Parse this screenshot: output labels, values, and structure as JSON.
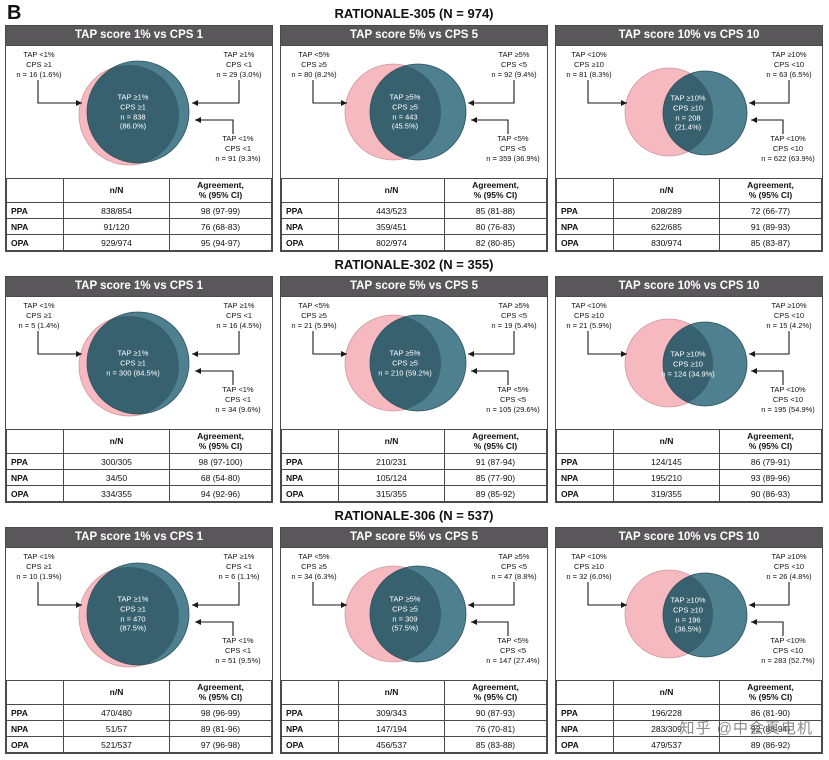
{
  "panel_label": "B",
  "watermark": "知乎 @中会真电机",
  "colors": {
    "header_bg": "#59575a",
    "border": "#4a4a4a",
    "pink": "#f6b9bf",
    "pink_edge": "#cf99a0",
    "teal_light": "#4e8090",
    "teal_dark": "#38616f",
    "teal_edge": "#2e525e",
    "arrow": "#1a1a1a"
  },
  "table_headers": {
    "col1": "n/N",
    "col2": "Agreement,\n% (95% CI)"
  },
  "studies": [
    {
      "title": "RATIONALE-305 (N = 974)",
      "panels": [
        {
          "header": "TAP score 1% vs CPS 1",
          "labels": {
            "top_left": "TAP <1%\nCPS ≥1\nn = 16 (1.6%)",
            "top_right": "TAP ≥1%\nCPS <1\nn = 29 (3.0%)",
            "center": "TAP ≥1%\nCPS ≥1\nn = 838\n(86.0%)",
            "bottom_right": "TAP <1%\nCPS <1\nn = 91 (9.3%)"
          },
          "table": {
            "rows": [
              {
                "label": "PPA",
                "n_N": "838/854",
                "agreement": "98 (97-99)"
              },
              {
                "label": "NPA",
                "n_N": "91/120",
                "agreement": "76 (68-83)"
              },
              {
                "label": "OPA",
                "n_N": "929/974",
                "agreement": "95 (94-97)"
              }
            ]
          }
        },
        {
          "header": "TAP score 5% vs CPS 5",
          "labels": {
            "top_left": "TAP <5%\nCPS ≥5\nn = 80 (8.2%)",
            "top_right": "TAP ≥5%\nCPS <5\nn = 92 (9.4%)",
            "center": "TAP ≥5%\nCPS ≥5\nn = 443\n(45.5%)",
            "bottom_right": "TAP <5%\nCPS <5\nn = 359 (36.9%)"
          },
          "table": {
            "rows": [
              {
                "label": "PPA",
                "n_N": "443/523",
                "agreement": "85 (81-88)"
              },
              {
                "label": "NPA",
                "n_N": "359/451",
                "agreement": "80 (76-83)"
              },
              {
                "label": "OPA",
                "n_N": "802/974",
                "agreement": "82 (80-85)"
              }
            ]
          }
        },
        {
          "header": "TAP score 10% vs CPS 10",
          "labels": {
            "top_left": "TAP <10%\nCPS ≥10\nn = 81 (8.3%)",
            "top_right": "TAP ≥10%\nCPS <10\nn = 63 (6.5%)",
            "center": "TAP ≥10%\nCPS ≥10\nn = 208\n(21.4%)",
            "bottom_right": "TAP <10%\nCPS <10\nn = 622 (63.9%)"
          },
          "table": {
            "rows": [
              {
                "label": "PPA",
                "n_N": "208/289",
                "agreement": "72 (66-77)"
              },
              {
                "label": "NPA",
                "n_N": "622/685",
                "agreement": "91 (89-93)"
              },
              {
                "label": "OPA",
                "n_N": "830/974",
                "agreement": "85 (83-87)"
              }
            ]
          }
        }
      ]
    },
    {
      "title": "RATIONALE-302 (N = 355)",
      "panels": [
        {
          "header": "TAP score 1% vs CPS 1",
          "labels": {
            "top_left": "TAP <1%\nCPS ≥1\nn = 5 (1.4%)",
            "top_right": "TAP ≥1%\nCPS <1\nn = 16 (4.5%)",
            "center": "TAP ≥1%\nCPS ≥1\nn = 300 (84.5%)",
            "bottom_right": "TAP <1%\nCPS <1\nn = 34 (9.6%)"
          },
          "table": {
            "rows": [
              {
                "label": "PPA",
                "n_N": "300/305",
                "agreement": "98 (97-100)"
              },
              {
                "label": "NPA",
                "n_N": "34/50",
                "agreement": "68 (54-80)"
              },
              {
                "label": "OPA",
                "n_N": "334/355",
                "agreement": "94 (92-96)"
              }
            ]
          }
        },
        {
          "header": "TAP score 5% vs CPS 5",
          "labels": {
            "top_left": "TAP <5%\nCPS ≥5\nn = 21 (5.9%)",
            "top_right": "TAP ≥5%\nCPS <5\nn = 19 (5.4%)",
            "center": "TAP ≥5%\nCPS ≥5\nn = 210 (59.2%)",
            "bottom_right": "TAP <5%\nCPS <5\nn = 105 (29.6%)"
          },
          "table": {
            "rows": [
              {
                "label": "PPA",
                "n_N": "210/231",
                "agreement": "91 (87-94)"
              },
              {
                "label": "NPA",
                "n_N": "105/124",
                "agreement": "85 (77-90)"
              },
              {
                "label": "OPA",
                "n_N": "315/355",
                "agreement": "89 (85-92)"
              }
            ]
          }
        },
        {
          "header": "TAP score 10% vs CPS 10",
          "labels": {
            "top_left": "TAP <10%\nCPS ≥10\nn = 21 (5.9%)",
            "top_right": "TAP ≥10%\nCPS <10\nn = 15 (4.2%)",
            "center": "TAP ≥10%\nCPS ≥10\nn = 124 (34.9%)",
            "bottom_right": "TAP <10%\nCPS <10\nn = 195 (54.9%)"
          },
          "table": {
            "rows": [
              {
                "label": "PPA",
                "n_N": "124/145",
                "agreement": "86 (79-91)"
              },
              {
                "label": "NPA",
                "n_N": "195/210",
                "agreement": "93 (89-96)"
              },
              {
                "label": "OPA",
                "n_N": "319/355",
                "agreement": "90 (86-93)"
              }
            ]
          }
        }
      ]
    },
    {
      "title": "RATIONALE-306 (N = 537)",
      "panels": [
        {
          "header": "TAP score 1% vs CPS 1",
          "labels": {
            "top_left": "TAP <1%\nCPS ≥1\nn = 10 (1.9%)",
            "top_right": "TAP ≥1%\nCPS <1\nn = 6 (1.1%)",
            "center": "TAP ≥1%\nCPS ≥1\nn = 470\n(87.5%)",
            "bottom_right": "TAP <1%\nCPS <1\nn = 51 (9.5%)"
          },
          "table": {
            "rows": [
              {
                "label": "PPA",
                "n_N": "470/480",
                "agreement": "98 (96-99)"
              },
              {
                "label": "NPA",
                "n_N": "51/57",
                "agreement": "89 (81-96)"
              },
              {
                "label": "OPA",
                "n_N": "521/537",
                "agreement": "97 (96-98)"
              }
            ]
          }
        },
        {
          "header": "TAP score 5% vs CPS 5",
          "labels": {
            "top_left": "TAP <5%\nCPS ≥5\nn = 34 (6.3%)",
            "top_right": "TAP ≥5%\nCPS <5\nn = 47 (8.8%)",
            "center": "TAP ≥5%\nCPS ≥5\nn = 309\n(57.5%)",
            "bottom_right": "TAP <5%\nCPS <5\nn = 147 (27.4%)"
          },
          "table": {
            "rows": [
              {
                "label": "PPA",
                "n_N": "309/343",
                "agreement": "90 (87-93)"
              },
              {
                "label": "NPA",
                "n_N": "147/194",
                "agreement": "76 (70-81)"
              },
              {
                "label": "OPA",
                "n_N": "456/537",
                "agreement": "85 (83-88)"
              }
            ]
          }
        },
        {
          "header": "TAP score 10% vs CPS 10",
          "labels": {
            "top_left": "TAP <10%\nCPS ≥10\nn = 32 (6.0%)",
            "top_right": "TAP ≥10%\nCPS <10\nn = 26 (4.8%)",
            "center": "TAP ≥10%\nCPS ≥10\nn = 196\n(36.5%)",
            "bottom_right": "TAP <10%\nCPS <10\nn = 283 (52.7%)"
          },
          "table": {
            "rows": [
              {
                "label": "PPA",
                "n_N": "196/228",
                "agreement": "86 (81-90)"
              },
              {
                "label": "NPA",
                "n_N": "283/309",
                "agreement": "92 (88-94)"
              },
              {
                "label": "OPA",
                "n_N": "479/537",
                "agreement": "89 (86-92)"
              }
            ]
          }
        }
      ]
    }
  ]
}
